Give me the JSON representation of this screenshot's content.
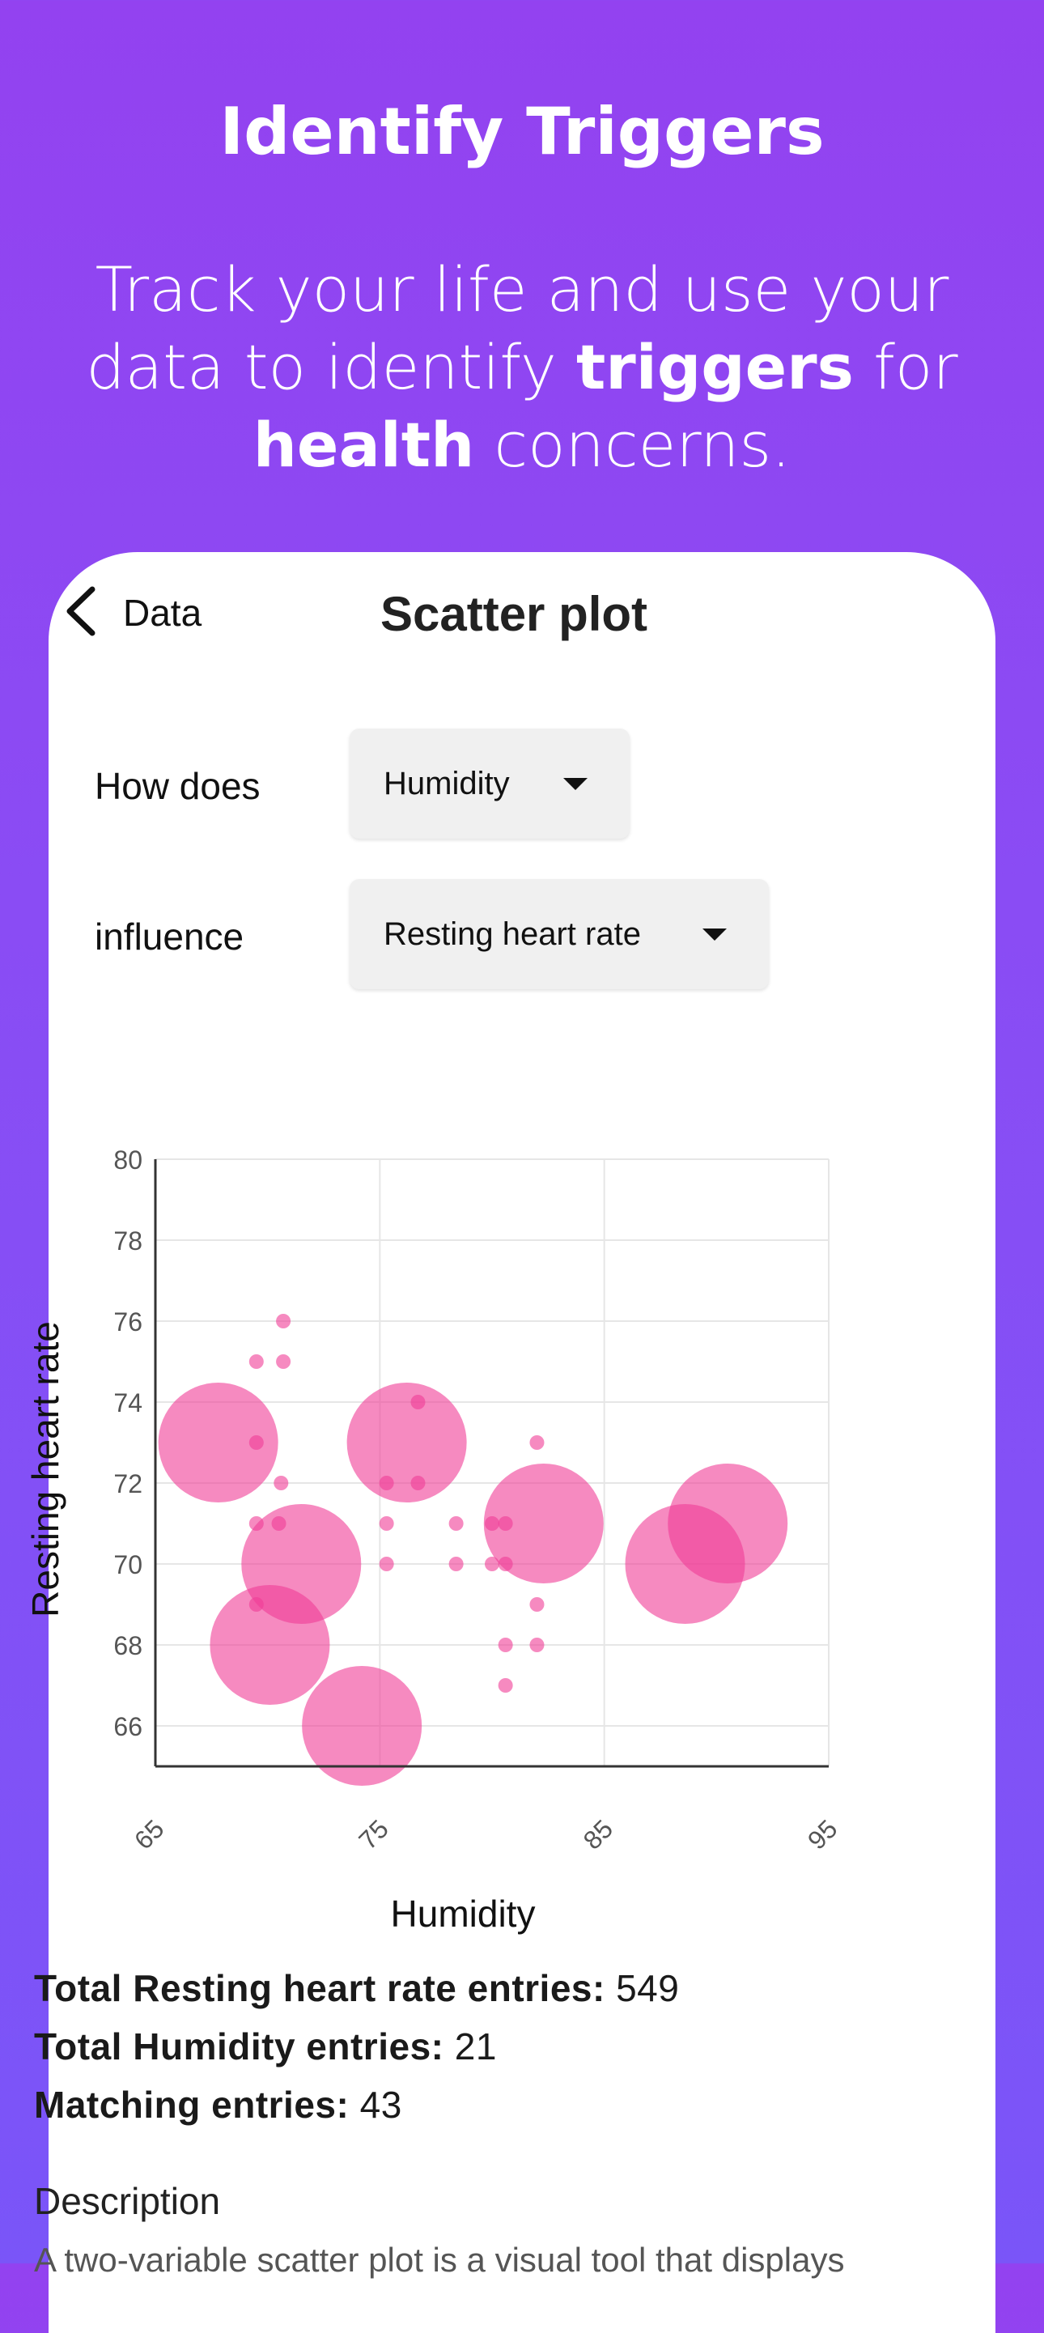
{
  "promo": {
    "title": "Identify Triggers",
    "subtitle_parts": [
      "Track your life and use your data to identify ",
      "triggers",
      " for ",
      "health",
      " concerns."
    ]
  },
  "nav": {
    "back_label": "Data",
    "title": "Scatter plot"
  },
  "selectors": {
    "row1_label": "How does",
    "row1_value": "Humidity",
    "row2_label": "influence",
    "row2_value": "Resting heart rate"
  },
  "colors": {
    "accent_pink": "#f03c96",
    "grid": "#e6e6e6",
    "axis": "#333333",
    "background_top": "#9342f0",
    "background_bottom": "#7a55f8"
  },
  "icons": {
    "back": "chevron-left-icon",
    "dropdown": "caret-down-icon"
  },
  "chart_data": {
    "type": "scatter",
    "title": "",
    "xlabel": "Humidity",
    "ylabel": "Resting heart rate",
    "xlim": [
      65,
      95
    ],
    "ylim": [
      65,
      80
    ],
    "x_ticks": [
      65,
      75,
      85,
      95
    ],
    "x_tick_labels": [
      "65",
      "75",
      "85",
      "95"
    ],
    "y_ticks": [
      66,
      68,
      70,
      72,
      74,
      76,
      78,
      80
    ],
    "y_tick_labels": [
      "66",
      "68",
      "70",
      "72",
      "74",
      "76",
      "78",
      "80"
    ],
    "grid": true,
    "bubbles": [
      {
        "x": 67.8,
        "y": 73
      },
      {
        "x": 71.5,
        "y": 70
      },
      {
        "x": 70.1,
        "y": 68
      },
      {
        "x": 74.2,
        "y": 66
      },
      {
        "x": 76.2,
        "y": 73
      },
      {
        "x": 82.3,
        "y": 71
      },
      {
        "x": 88.6,
        "y": 70
      },
      {
        "x": 90.5,
        "y": 71
      }
    ],
    "points": [
      {
        "x": 69.5,
        "y": 75
      },
      {
        "x": 70.7,
        "y": 75
      },
      {
        "x": 70.7,
        "y": 76
      },
      {
        "x": 69.5,
        "y": 73
      },
      {
        "x": 70.6,
        "y": 72
      },
      {
        "x": 69.5,
        "y": 71
      },
      {
        "x": 70.5,
        "y": 71
      },
      {
        "x": 69.5,
        "y": 69
      },
      {
        "x": 76.7,
        "y": 74
      },
      {
        "x": 75.3,
        "y": 72
      },
      {
        "x": 76.7,
        "y": 72
      },
      {
        "x": 75.3,
        "y": 71
      },
      {
        "x": 75.3,
        "y": 70
      },
      {
        "x": 78.4,
        "y": 71
      },
      {
        "x": 78.4,
        "y": 70
      },
      {
        "x": 80.0,
        "y": 71
      },
      {
        "x": 80.0,
        "y": 70
      },
      {
        "x": 80.6,
        "y": 71
      },
      {
        "x": 80.6,
        "y": 70
      },
      {
        "x": 80.6,
        "y": 68
      },
      {
        "x": 80.6,
        "y": 67
      },
      {
        "x": 82.0,
        "y": 73
      },
      {
        "x": 82.0,
        "y": 69
      },
      {
        "x": 82.0,
        "y": 68
      }
    ]
  },
  "stats": {
    "resting_label": "Total Resting heart rate entries:",
    "resting_value": "549",
    "humidity_label": "Total Humidity entries:",
    "humidity_value": "21",
    "matching_label": "Matching entries:",
    "matching_value": "43"
  },
  "description": {
    "heading": "Description",
    "text": "A two-variable scatter plot is a visual tool that displays"
  }
}
